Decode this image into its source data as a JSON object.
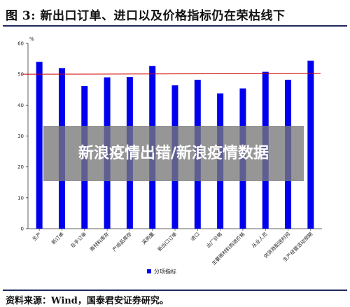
{
  "figure": {
    "title": "图 3:  新出口订单、进口以及价格指标仍在荣枯线下",
    "source": "资料来源：Wind，国泰君安证券研究。"
  },
  "overlay": {
    "text": "新浪疫情出错/新浪疫情数据"
  },
  "colors": {
    "bar": "#0000ee",
    "threshold_line": "#cc0000",
    "axis": "#333333"
  },
  "chart_data": {
    "type": "bar",
    "ylabel": "%",
    "ylim": [
      0,
      60
    ],
    "yticks": [
      0,
      10,
      20,
      30,
      40,
      50,
      60
    ],
    "categories": [
      "生产",
      "新订单",
      "在手订单",
      "原材料库存",
      "产成品库存",
      "采购量",
      "新出口订单",
      "进口",
      "出厂价格",
      "主要原材料购进价格",
      "从业人员",
      "供货商配送时间",
      "生产经营活动预期"
    ],
    "series": [
      {
        "name": "分项指标",
        "values": [
          54.0,
          52.0,
          46.2,
          49.0,
          49.1,
          52.7,
          46.4,
          48.2,
          43.8,
          45.4,
          50.8,
          48.2,
          54.4
        ]
      }
    ],
    "threshold": 50,
    "legend_position": "bottom-center",
    "grid": false
  }
}
